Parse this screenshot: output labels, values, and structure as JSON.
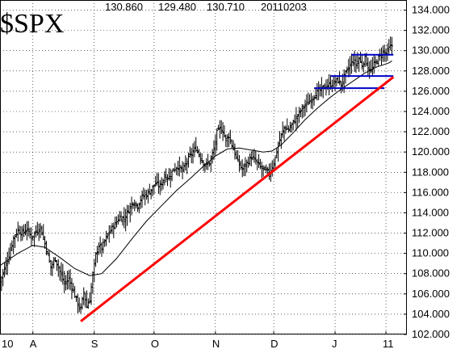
{
  "header": {
    "symbol": "$SPX",
    "high": "130.860",
    "low": "129.480",
    "close": "130.710",
    "date": "20110203"
  },
  "chart_data": {
    "type": "bar",
    "ohlc_bars": true,
    "ylim": [
      102,
      135
    ],
    "y_ticks": [
      "102.000",
      "104.000",
      "106.000",
      "108.000",
      "110.000",
      "112.000",
      "114.000",
      "116.000",
      "118.000",
      "120.000",
      "122.000",
      "124.000",
      "126.000",
      "128.000",
      "130.000",
      "132.000",
      "134.000"
    ],
    "x_ticks": [
      {
        "label": "10",
        "day": 0
      },
      {
        "label": "A",
        "day": 22
      },
      {
        "label": "S",
        "day": 63
      },
      {
        "label": "O",
        "day": 103
      },
      {
        "label": "N",
        "day": 144
      },
      {
        "label": "D",
        "day": 183
      },
      {
        "label": "J",
        "day": 224
      },
      {
        "label": "11",
        "day": 258
      }
    ],
    "x_range_days": [
      0,
      272
    ],
    "grid": true,
    "price_path": [
      [
        0,
        107.2
      ],
      [
        3,
        108.5
      ],
      [
        6,
        109.8
      ],
      [
        9,
        111.5
      ],
      [
        12,
        112.3
      ],
      [
        15,
        112.0
      ],
      [
        18,
        112.4
      ],
      [
        21,
        111.6
      ],
      [
        24,
        112.1
      ],
      [
        27,
        112.6
      ],
      [
        30,
        111.0
      ],
      [
        32,
        109.8
      ],
      [
        34,
        108.6
      ],
      [
        37,
        109.5
      ],
      [
        40,
        108.2
      ],
      [
        43,
        107.0
      ],
      [
        46,
        107.5
      ],
      [
        49,
        106.3
      ],
      [
        52,
        105.0
      ],
      [
        54,
        104.5
      ],
      [
        56,
        106.2
      ],
      [
        58,
        104.8
      ],
      [
        60,
        105.5
      ],
      [
        62,
        107.8
      ],
      [
        64,
        109.8
      ],
      [
        66,
        110.8
      ],
      [
        68,
        110.5
      ],
      [
        71,
        111.5
      ],
      [
        74,
        112.3
      ],
      [
        77,
        112.9
      ],
      [
        80,
        113.6
      ],
      [
        83,
        113.4
      ],
      [
        86,
        114.3
      ],
      [
        89,
        115.1
      ],
      [
        92,
        114.7
      ],
      [
        95,
        115.6
      ],
      [
        98,
        115.8
      ],
      [
        101,
        116.3
      ],
      [
        104,
        116.9
      ],
      [
        107,
        116.6
      ],
      [
        110,
        117.6
      ],
      [
        113,
        117.5
      ],
      [
        116,
        118.3
      ],
      [
        119,
        118.6
      ],
      [
        122,
        118.1
      ],
      [
        125,
        119.1
      ],
      [
        128,
        119.8
      ],
      [
        131,
        120.4
      ],
      [
        134,
        119.5
      ],
      [
        137,
        118.7
      ],
      [
        140,
        118.9
      ],
      [
        143,
        120.2
      ],
      [
        145,
        121.9
      ],
      [
        147,
        122.3
      ],
      [
        149,
        122.1
      ],
      [
        151,
        121.2
      ],
      [
        153,
        121.6
      ],
      [
        156,
        120.3
      ],
      [
        159,
        119.0
      ],
      [
        162,
        118.3
      ],
      [
        165,
        118.9
      ],
      [
        168,
        119.5
      ],
      [
        171,
        119.1
      ],
      [
        174,
        118.5
      ],
      [
        177,
        118.2
      ],
      [
        180,
        117.9
      ],
      [
        182,
        118.6
      ],
      [
        184,
        119.4
      ],
      [
        186,
        120.7
      ],
      [
        188,
        121.6
      ],
      [
        190,
        122.4
      ],
      [
        193,
        122.2
      ],
      [
        196,
        122.9
      ],
      [
        199,
        123.6
      ],
      [
        202,
        124.3
      ],
      [
        205,
        124.7
      ],
      [
        208,
        125.2
      ],
      [
        211,
        125.8
      ],
      [
        214,
        126.1
      ],
      [
        217,
        126.4
      ],
      [
        220,
        126.6
      ],
      [
        223,
        126.8
      ],
      [
        226,
        127.1
      ],
      [
        228,
        126.6
      ],
      [
        230,
        127.4
      ],
      [
        232,
        128.0
      ],
      [
        234,
        128.6
      ],
      [
        236,
        129.0
      ],
      [
        238,
        128.7
      ],
      [
        240,
        129.2
      ],
      [
        242,
        128.6
      ],
      [
        244,
        129.3
      ],
      [
        246,
        128.3
      ],
      [
        248,
        128.0
      ],
      [
        250,
        128.6
      ],
      [
        252,
        129.1
      ],
      [
        254,
        129.5
      ],
      [
        256,
        129.9
      ],
      [
        258,
        129.7
      ],
      [
        260,
        130.2
      ],
      [
        262,
        130.5
      ]
    ],
    "moving_average": [
      [
        0,
        108.8
      ],
      [
        12,
        110.0
      ],
      [
        22,
        110.8
      ],
      [
        30,
        110.6
      ],
      [
        40,
        109.6
      ],
      [
        50,
        108.5
      ],
      [
        60,
        107.8
      ],
      [
        68,
        108.0
      ],
      [
        78,
        109.5
      ],
      [
        88,
        111.4
      ],
      [
        98,
        113.2
      ],
      [
        108,
        114.7
      ],
      [
        118,
        116.2
      ],
      [
        128,
        117.5
      ],
      [
        136,
        118.6
      ],
      [
        144,
        119.6
      ],
      [
        152,
        120.3
      ],
      [
        160,
        120.4
      ],
      [
        168,
        120.2
      ],
      [
        176,
        120.0
      ],
      [
        182,
        120.1
      ],
      [
        188,
        120.7
      ],
      [
        196,
        121.9
      ],
      [
        204,
        123.2
      ],
      [
        212,
        124.3
      ],
      [
        220,
        125.3
      ],
      [
        228,
        126.2
      ],
      [
        236,
        127.0
      ],
      [
        244,
        127.8
      ],
      [
        252,
        128.4
      ],
      [
        260,
        128.8
      ],
      [
        262,
        129.0
      ]
    ],
    "trendline": {
      "color": "#ff0000",
      "from": [
        54,
        103.3
      ],
      "to": [
        263,
        127.4
      ]
    },
    "support_lines": [
      {
        "color": "#0000c8",
        "from": [
          210,
          126.3
        ],
        "to": [
          257,
          126.3
        ]
      },
      {
        "color": "#0000c8",
        "from": [
          221,
          127.5
        ],
        "to": [
          263,
          127.5
        ]
      },
      {
        "color": "#0000c8",
        "from": [
          235,
          129.6
        ],
        "to": [
          263,
          129.6
        ]
      }
    ],
    "colors": {
      "bars": "#000000",
      "moving_average": "#000000",
      "grid": "#000000"
    }
  }
}
